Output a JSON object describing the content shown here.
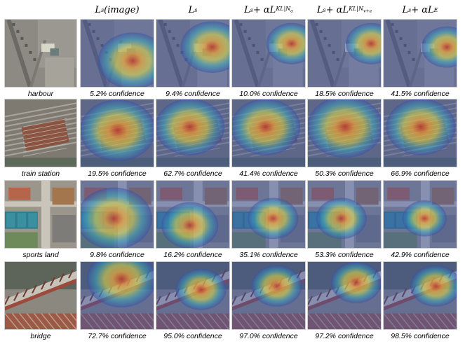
{
  "column_headers": [
    {
      "base": "L",
      "sub": "s",
      "suffix": "(image)"
    },
    {
      "base": "L",
      "sub": "s",
      "suffix": ""
    },
    {
      "base": "L",
      "sub": "s",
      "suffix": " + αL",
      "sub2": "KL|N",
      "sub3": "a"
    },
    {
      "base": "L",
      "sub": "s",
      "suffix": " + αL",
      "sub2": "KL|N",
      "sub3": "v+a"
    },
    {
      "base": "L",
      "sub": "s",
      "suffix": " + αL",
      "sub2": "E",
      "sub3": ""
    }
  ],
  "rows": [
    {
      "label": "harbour",
      "confidences": [
        "5.2% confidence",
        "9.4% confidence",
        "10.0% confidence",
        "18.5% confidence",
        "41.5% confidence"
      ],
      "theme": "harbour"
    },
    {
      "label": "train station",
      "confidences": [
        "19.5% confidence",
        "62.7% confidence",
        "41.4% confidence",
        "50.3% confidence",
        "66.9% confidence"
      ],
      "theme": "train"
    },
    {
      "label": "sports land",
      "confidences": [
        "9.8% confidence",
        "16.2% confidence",
        "35.1% confidence",
        "53.3% confidence",
        "42.9% confidence"
      ],
      "theme": "sports"
    },
    {
      "label": "bridge",
      "confidences": [
        "72.7% confidence",
        "95.0% confidence",
        "97.0% confidence",
        "97.2% confidence",
        "98.5% confidence"
      ],
      "theme": "bridge"
    }
  ],
  "colors": {
    "heat_hot": "#c0392b",
    "heat_warm": "#e8a33a",
    "heat_mid": "#d8d84a",
    "heat_cool": "#3aa7b8",
    "heat_cold": "#3a4fa6"
  }
}
